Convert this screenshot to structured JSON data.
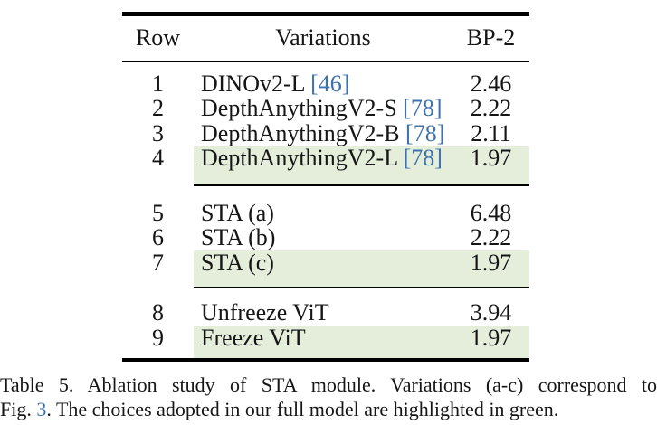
{
  "table": {
    "title_hint": "ablation-table",
    "columns": {
      "row": "Row",
      "variations": "Variations",
      "metric": "BP-2"
    },
    "sections": [
      {
        "rows": [
          {
            "num": "1",
            "name": "DINOv2-L ",
            "cite": "[46]",
            "value": "2.46",
            "highlighted": false
          },
          {
            "num": "2",
            "name": "DepthAnythingV2-S ",
            "cite": "[78]",
            "value": "2.22",
            "highlighted": false
          },
          {
            "num": "3",
            "name": "DepthAnythingV2-B ",
            "cite": "[78]",
            "value": "2.11",
            "highlighted": false
          },
          {
            "num": "4",
            "name": "DepthAnythingV2-L ",
            "cite": "[78]",
            "value": "1.97",
            "highlighted": true
          }
        ]
      },
      {
        "rows": [
          {
            "num": "5",
            "name": "STA (a)",
            "value": "6.48",
            "highlighted": false
          },
          {
            "num": "6",
            "name": "STA (b)",
            "value": "2.22",
            "highlighted": false
          },
          {
            "num": "7",
            "name": "STA (c)",
            "value": "1.97",
            "highlighted": true
          }
        ]
      },
      {
        "rows": [
          {
            "num": "8",
            "name": "Unfreeze ViT",
            "value": "3.94",
            "highlighted": false
          },
          {
            "num": "9",
            "name": "Freeze ViT",
            "value": "1.97",
            "highlighted": true
          }
        ]
      }
    ]
  },
  "caption": {
    "line1": "Table 5. Ablation study of STA module. Variations (a-c) correspond to",
    "line2_pre": "Fig. ",
    "line2_ref": "3",
    "line2_post": ". The choices adopted in our full model are highlighted in green."
  },
  "colors": {
    "highlight_green": "#e4eedb",
    "citation_blue": "#3d72ac"
  }
}
